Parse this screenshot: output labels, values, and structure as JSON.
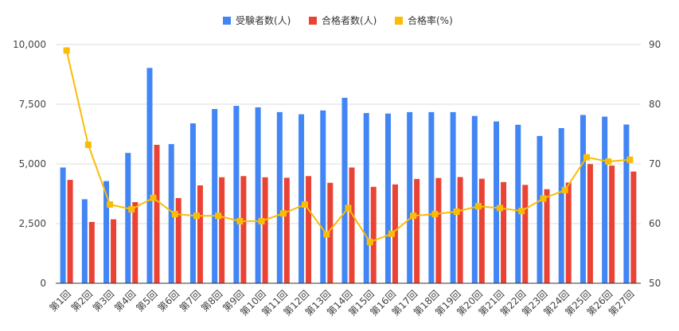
{
  "chart_data": {
    "type": "bar",
    "categories": [
      "第1回",
      "第2回",
      "第3回",
      "第4回",
      "第5回",
      "第6回",
      "第7回",
      "第8回",
      "第9回",
      "第10回",
      "第11回",
      "第12回",
      "第13回",
      "第14回",
      "第15回",
      "第16回",
      "第17回",
      "第18回",
      "第19回",
      "第20回",
      "第21回",
      "第22回",
      "第23回",
      "第24回",
      "第25回",
      "第26回",
      "第27回"
    ],
    "series": [
      {
        "name": "受験者数(人)",
        "type": "bar",
        "axis": "left",
        "color": "#4285F4",
        "values": [
          4850,
          3520,
          4280,
          5460,
          9020,
          5830,
          6700,
          7300,
          7430,
          7370,
          7170,
          7080,
          7240,
          7770,
          7130,
          7110,
          7170,
          7170,
          7170,
          7010,
          6780,
          6640,
          6170,
          6500,
          7050,
          6980,
          6650
        ]
      },
      {
        "name": "合格者数(人)",
        "type": "bar",
        "axis": "left",
        "color": "#EA4335",
        "values": [
          4330,
          2570,
          2680,
          3400,
          5800,
          3570,
          4100,
          4440,
          4490,
          4440,
          4420,
          4490,
          4210,
          4850,
          4040,
          4140,
          4370,
          4410,
          4450,
          4380,
          4240,
          4120,
          3940,
          4220,
          4990,
          4930,
          4680
        ]
      },
      {
        "name": "合格率(%)",
        "type": "line",
        "axis": "right",
        "color": "#FBBC04",
        "values": [
          89.0,
          73.2,
          63.2,
          62.4,
          64.3,
          61.6,
          61.3,
          61.3,
          60.4,
          60.4,
          61.7,
          63.2,
          58.2,
          62.6,
          56.9,
          58.3,
          61.3,
          61.6,
          62.0,
          62.9,
          62.6,
          62.1,
          64.2,
          65.6,
          71.1,
          70.4,
          70.7
        ]
      }
    ],
    "left_axis": {
      "min": 0,
      "max": 10000,
      "ticks": [
        0,
        2500,
        5000,
        7500,
        10000
      ],
      "tick_labels": [
        "0",
        "2,500",
        "5,000",
        "7,500",
        "10,000"
      ]
    },
    "right_axis": {
      "min": 50,
      "max": 90,
      "ticks": [
        50,
        60,
        70,
        80,
        90
      ],
      "tick_labels": [
        "50",
        "60",
        "70",
        "80",
        "90"
      ]
    },
    "grid": true,
    "legend": "top-center",
    "title": "",
    "xlabel": "",
    "ylabel": ""
  }
}
